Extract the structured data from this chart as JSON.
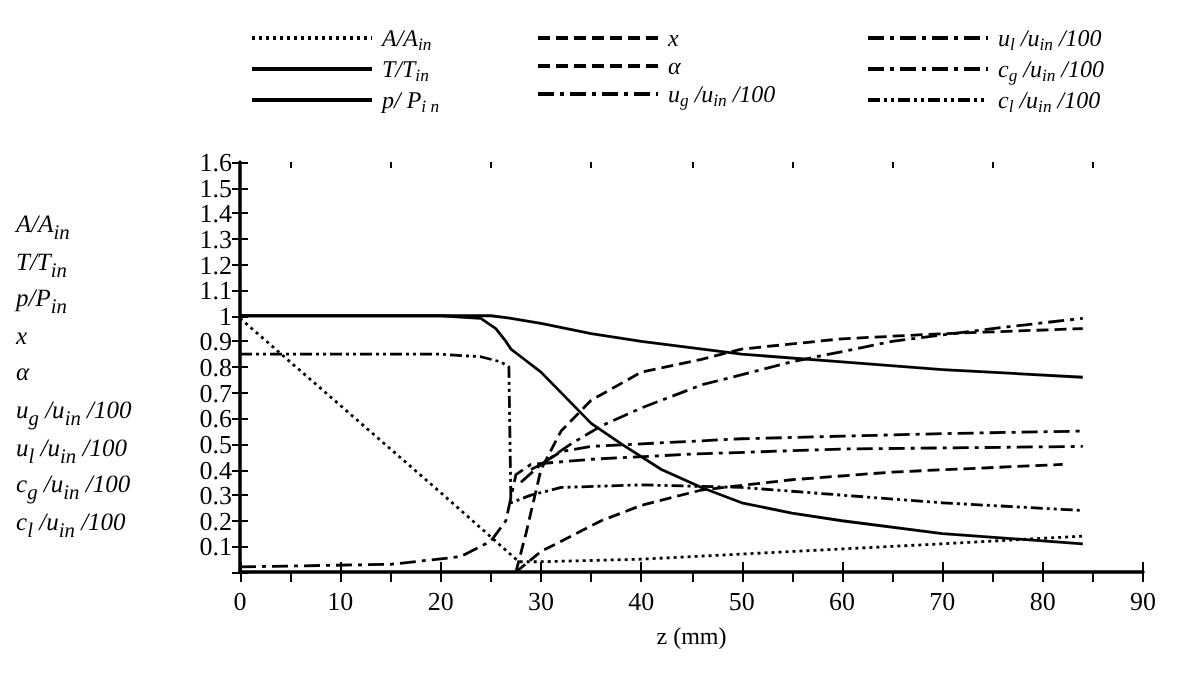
{
  "chart_data": {
    "type": "line",
    "xlabel": "z (mm)",
    "ylabel": "A/A$_{in}$\nT/T$_{in}$\np/P$_{in}$\nx\nα\nu$_{g}$ /u$_{in}$ /100\nu$_{l}$ /u$_{in}$ /100\nc$_{g}$ /u$_{in}$ /100\nc$_{l}$ /u$_{in}$ /100",
    "xlim": [
      0,
      90
    ],
    "xticks": [
      0,
      10,
      20,
      30,
      40,
      50,
      60,
      70,
      80,
      90
    ],
    "ylim": [
      0,
      1.6
    ],
    "yticks": [
      {
        "value": 0,
        "label": null
      },
      0.1,
      0.2,
      0.3,
      0.4,
      0.5,
      0.6,
      0.7,
      0.8,
      0.9,
      1,
      1.1,
      1.2,
      1.3,
      1.4,
      1.5,
      1.6
    ],
    "grid": false,
    "legend": "top",
    "marker": "none",
    "series": [
      {
        "name": "A/A$_{in}$",
        "color": "#000000",
        "line_style": "dotted",
        "x": [
          0,
          10,
          20,
          27.8,
          30,
          40,
          50,
          60,
          70,
          84
        ],
        "values": [
          0.99,
          0.65,
          0.31,
          0.04,
          0.04,
          0.05,
          0.07,
          0.09,
          0.11,
          0.14
        ]
      },
      {
        "name": "T/T$_{in}$",
        "color": "#000000",
        "line_style": "solid",
        "x": [
          0,
          10,
          20,
          25,
          27,
          30,
          35,
          40,
          50,
          60,
          70,
          84
        ],
        "values": [
          1,
          1,
          1,
          1,
          0.99,
          0.97,
          0.93,
          0.9,
          0.85,
          0.82,
          0.79,
          0.76
        ]
      },
      {
        "name": "p/ P$_{i n}$",
        "color": "#000000",
        "line_style": "solid",
        "x": [
          0,
          10,
          20,
          24,
          25.5,
          26.5,
          27,
          28,
          30,
          32,
          35,
          38,
          42,
          46,
          50,
          55,
          60,
          70,
          84
        ],
        "values": [
          1,
          1,
          1,
          0.99,
          0.95,
          0.9,
          0.87,
          0.84,
          0.78,
          0.7,
          0.58,
          0.5,
          0.4,
          0.33,
          0.27,
          0.23,
          0.2,
          0.15,
          0.11
        ]
      },
      {
        "name": "x",
        "color": "#000000",
        "line_style": "dashed",
        "x": [
          27.5,
          30,
          33,
          36,
          40,
          46,
          55,
          65,
          82
        ],
        "values": [
          0,
          0.08,
          0.14,
          0.2,
          0.26,
          0.32,
          0.36,
          0.39,
          0.42
        ]
      },
      {
        "name": "α",
        "color": "#000000",
        "line_style": "dashed",
        "x": [
          27.5,
          28.5,
          30,
          32,
          35,
          40,
          46,
          50,
          60,
          70,
          84
        ],
        "values": [
          0,
          0.15,
          0.4,
          0.55,
          0.67,
          0.78,
          0.83,
          0.87,
          0.91,
          0.93,
          0.95
        ]
      },
      {
        "name": "u$_{g}$ /u$_{in}$ /100",
        "color": "#000000",
        "line_style": "dashdot",
        "x": [
          29,
          30,
          33,
          36,
          40,
          46,
          55,
          65,
          75,
          84
        ],
        "values": [
          0.4,
          0.42,
          0.5,
          0.57,
          0.64,
          0.73,
          0.82,
          0.9,
          0.95,
          0.99
        ]
      },
      {
        "name": "u$_{l}$ /u$_{in}$ /100",
        "color": "#000000",
        "line_style": "dashdot",
        "x": [
          0,
          15,
          22,
          25,
          26.5,
          27.5,
          29,
          35,
          45,
          60,
          84
        ],
        "values": [
          0.02,
          0.03,
          0.06,
          0.12,
          0.2,
          0.38,
          0.42,
          0.44,
          0.46,
          0.48,
          0.49
        ]
      },
      {
        "name": "c$_{g}$ /u$_{in}$ /100",
        "color": "#000000",
        "line_style": "dashdot",
        "x": [
          28,
          30,
          32,
          35,
          40,
          50,
          60,
          70,
          84
        ],
        "values": [
          0.35,
          0.42,
          0.47,
          0.49,
          0.5,
          0.52,
          0.53,
          0.54,
          0.55
        ]
      },
      {
        "name": "c$_{l}$ /u$_{in}$ /100",
        "color": "#000000",
        "line_style": "dashdotdot",
        "x": [
          0,
          10,
          20,
          24,
          26,
          26.8,
          27,
          29,
          32,
          40,
          50,
          60,
          70,
          84
        ],
        "values": [
          0.85,
          0.85,
          0.85,
          0.84,
          0.82,
          0.8,
          0.27,
          0.3,
          0.33,
          0.34,
          0.33,
          0.3,
          0.27,
          0.24
        ]
      }
    ]
  }
}
